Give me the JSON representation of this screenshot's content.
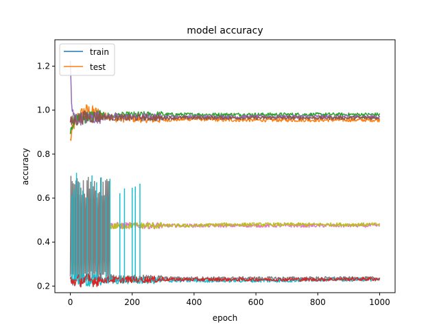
{
  "chart_data": {
    "type": "line",
    "title": "model accuracy",
    "xlabel": "epoch",
    "ylabel": "accuracy",
    "xlim": [
      -50,
      1050
    ],
    "ylim": [
      0.17,
      1.32
    ],
    "xticks": [
      0,
      200,
      400,
      600,
      800,
      1000
    ],
    "yticks": [
      0.2,
      0.4,
      0.6,
      0.8,
      1.0,
      1.2
    ],
    "xtick_labels": [
      "0",
      "200",
      "400",
      "600",
      "800",
      "1000"
    ],
    "ytick_labels": [
      "0.2",
      "0.4",
      "0.6",
      "0.8",
      "1.0",
      "1.2"
    ],
    "grid": false,
    "legend_location": "upper-left",
    "legend": [
      {
        "name": "train",
        "color": "#1f77b4"
      },
      {
        "name": "test",
        "color": "#ff7f0e"
      }
    ],
    "palette": [
      "#1f77b4",
      "#ff7f0e",
      "#2ca02c",
      "#d62728",
      "#9467bd",
      "#8c564b",
      "#e377c2",
      "#7f7f7f",
      "#bcbd22",
      "#17becf"
    ],
    "series": [
      {
        "color": "#ff7f0e",
        "x": [
          0,
          10,
          25,
          50,
          100,
          150,
          200,
          300,
          400,
          500,
          600,
          700,
          800,
          900,
          1000
        ],
        "y": [
          0.86,
          0.93,
          0.97,
          1.0,
          0.98,
          0.96,
          0.96,
          0.955,
          0.96,
          0.955,
          0.955,
          0.955,
          0.955,
          0.955,
          0.955
        ]
      },
      {
        "color": "#2ca02c",
        "x": [
          0,
          10,
          25,
          50,
          100,
          150,
          200,
          300,
          400,
          500,
          600,
          700,
          800,
          900,
          1000
        ],
        "y": [
          0.92,
          0.95,
          0.96,
          0.97,
          0.975,
          0.975,
          0.978,
          0.98,
          0.98,
          0.98,
          0.98,
          0.98,
          0.98,
          0.98,
          0.98
        ]
      },
      {
        "color": "#9467bd",
        "x": [
          0,
          5,
          10,
          25,
          50,
          100,
          200,
          400,
          600,
          800,
          1000
        ],
        "y": [
          1.22,
          1.0,
          0.97,
          0.96,
          0.965,
          0.97,
          0.97,
          0.97,
          0.97,
          0.97,
          0.97
        ]
      },
      {
        "color": "#8c564b",
        "x": [
          0,
          10,
          25,
          50,
          100,
          150,
          200,
          300,
          400,
          500,
          600,
          700,
          800,
          900,
          1000
        ],
        "y": [
          0.94,
          0.95,
          0.96,
          0.97,
          0.97,
          0.965,
          0.965,
          0.965,
          0.965,
          0.965,
          0.965,
          0.965,
          0.965,
          0.965,
          0.965
        ]
      },
      {
        "color": "#e377c2",
        "x": [
          100,
          150,
          200,
          300,
          400,
          500,
          600,
          700,
          800,
          900,
          1000
        ],
        "y": [
          0.48,
          0.475,
          0.475,
          0.475,
          0.475,
          0.475,
          0.475,
          0.475,
          0.475,
          0.475,
          0.475
        ]
      },
      {
        "color": "#bcbd22",
        "x": [
          100,
          200,
          300,
          400,
          500,
          600,
          700,
          800,
          900,
          1000
        ],
        "y": [
          0.47,
          0.475,
          0.475,
          0.475,
          0.48,
          0.48,
          0.48,
          0.48,
          0.48,
          0.48
        ]
      },
      {
        "color": "#7f7f7f",
        "x": [
          0,
          10,
          25,
          50,
          75,
          100,
          125,
          150,
          200,
          300,
          400,
          600,
          800,
          1000
        ],
        "y": [
          0.43,
          0.55,
          0.45,
          0.4,
          0.45,
          0.35,
          0.24,
          0.235,
          0.235,
          0.235,
          0.235,
          0.235,
          0.235,
          0.235
        ]
      },
      {
        "color": "#17becf",
        "x": [
          0,
          100,
          200,
          300,
          400,
          500,
          600,
          700,
          800,
          900,
          1000
        ],
        "y": [
          0.23,
          0.225,
          0.225,
          0.225,
          0.225,
          0.225,
          0.225,
          0.225,
          0.23,
          0.23,
          0.23
        ]
      },
      {
        "color": "#d62728",
        "x": [
          0,
          100,
          200,
          300,
          400,
          500,
          600,
          700,
          800,
          900,
          1000
        ],
        "y": [
          0.225,
          0.228,
          0.23,
          0.23,
          0.23,
          0.23,
          0.23,
          0.23,
          0.23,
          0.232,
          0.232
        ]
      }
    ]
  }
}
